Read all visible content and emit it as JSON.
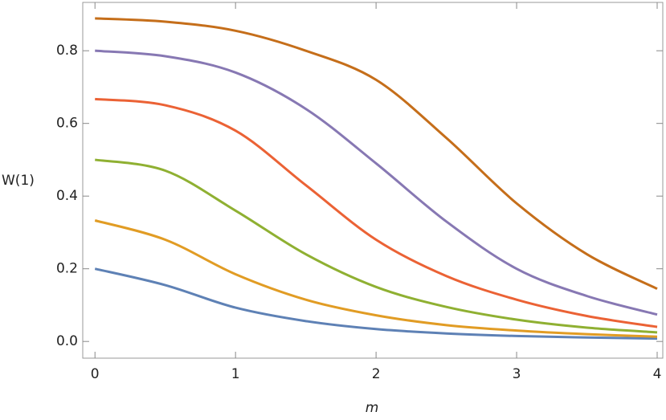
{
  "chart_data": {
    "type": "line",
    "xlabel": "m",
    "ylabel": "W(1)",
    "x": [
      0,
      0.5,
      1,
      1.5,
      2,
      2.5,
      3,
      3.5,
      4
    ],
    "series": [
      {
        "color": "#5e81b5",
        "values": [
          0.2,
          0.155,
          0.093,
          0.056,
          0.034,
          0.022,
          0.015,
          0.011,
          0.008
        ]
      },
      {
        "color": "#e19c24",
        "values": [
          0.333,
          0.28,
          0.185,
          0.115,
          0.072,
          0.045,
          0.03,
          0.02,
          0.013
        ]
      },
      {
        "color": "#8fb032",
        "values": [
          0.5,
          0.47,
          0.36,
          0.24,
          0.15,
          0.095,
          0.06,
          0.038,
          0.025
        ]
      },
      {
        "color": "#eb6235",
        "values": [
          0.667,
          0.65,
          0.58,
          0.43,
          0.28,
          0.18,
          0.115,
          0.07,
          0.04
        ]
      },
      {
        "color": "#8778b3",
        "values": [
          0.8,
          0.785,
          0.74,
          0.64,
          0.49,
          0.33,
          0.2,
          0.125,
          0.074
        ]
      },
      {
        "color": "#c56e1a",
        "values": [
          0.889,
          0.88,
          0.855,
          0.8,
          0.72,
          0.56,
          0.38,
          0.24,
          0.145
        ]
      }
    ],
    "xlim": [
      -0.087,
      4.04
    ],
    "ylim": [
      -0.046,
      0.933
    ],
    "xticks": [
      0,
      1,
      2,
      3,
      4
    ],
    "yticks": [
      {
        "value": 0,
        "label": "0.0"
      },
      0.2,
      0.4,
      0.6,
      0.8
    ],
    "grid": false
  }
}
